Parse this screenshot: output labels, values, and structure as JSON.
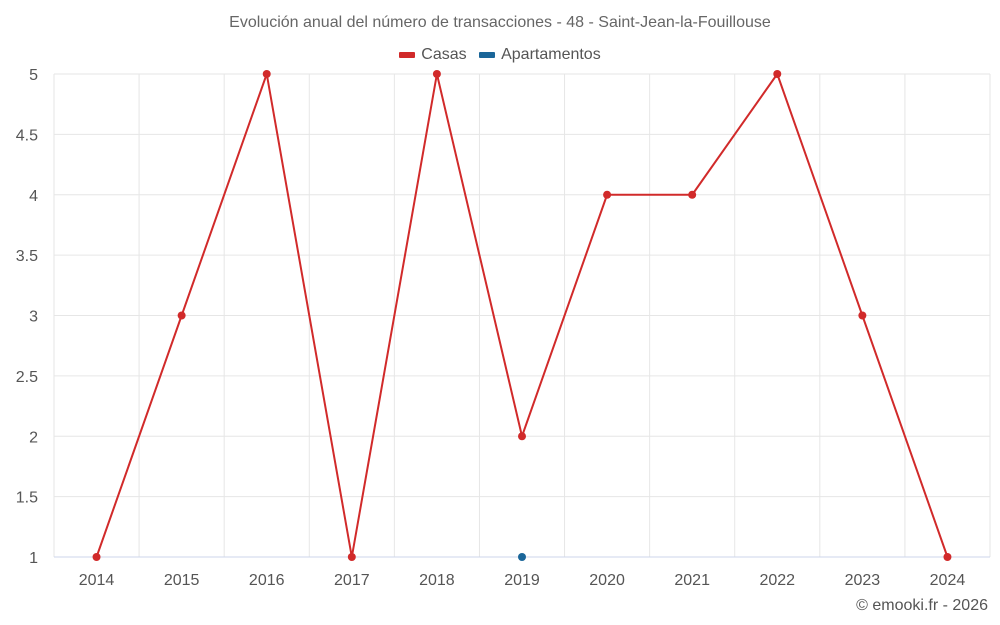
{
  "chart_data": {
    "type": "line",
    "title": "Evolución anual del número de transacciones - 48 - Saint-Jean-la-Fouillouse",
    "categories": [
      "2014",
      "2015",
      "2016",
      "2017",
      "2018",
      "2019",
      "2020",
      "2021",
      "2022",
      "2023",
      "2024"
    ],
    "series": [
      {
        "name": "Casas",
        "color": "#d12a2a",
        "values": [
          1,
          3,
          5,
          1,
          5,
          2,
          4,
          4,
          5,
          3,
          1
        ]
      },
      {
        "name": "Apartamentos",
        "color": "#1a6699",
        "values": [
          null,
          null,
          null,
          null,
          null,
          1,
          null,
          null,
          null,
          null,
          null
        ]
      }
    ],
    "ylim": [
      1,
      5
    ],
    "yticks": [
      1,
      1.5,
      2,
      2.5,
      3,
      3.5,
      4,
      4.5,
      5
    ],
    "grid": true,
    "legend": "top-center"
  },
  "credit": "© emooki.fr - 2026"
}
